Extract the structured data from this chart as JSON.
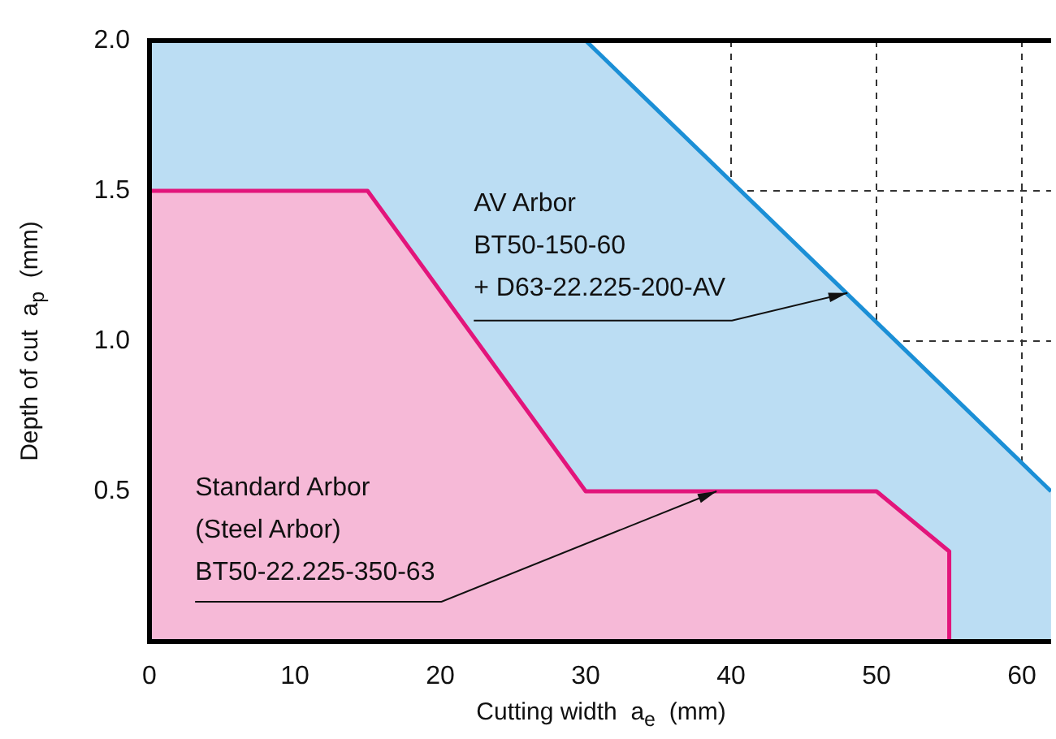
{
  "chart_data": {
    "type": "area",
    "xlabel": "Cutting width  a$_{e}$  (mm)",
    "ylabel": "Depth of cut  a$_{p}$  (mm)",
    "xlim": [
      0,
      62
    ],
    "xticks": [
      0,
      10,
      20,
      30,
      40,
      50,
      60
    ],
    "ylim": [
      0,
      2
    ],
    "yticks": [
      {
        "value": 0,
        "label": null
      },
      {
        "value": 0.5,
        "label": "0.5"
      },
      {
        "value": 1,
        "label": "1.0"
      },
      {
        "value": 1.5,
        "label": "1.5"
      },
      {
        "value": 2,
        "label": "2.0"
      }
    ],
    "series": [
      {
        "color": "#1b8fd6",
        "x": [
          0,
          30,
          62
        ],
        "values": [
          2,
          2,
          0.5
        ]
      },
      {
        "color": "#e2157b",
        "x": [
          0,
          15,
          30,
          50,
          55,
          55
        ],
        "values": [
          1.5,
          1.5,
          0.5,
          0.5,
          0.3,
          0
        ]
      }
    ],
    "annotations": [
      {
        "text": "AV Arbor\nBT50-150-60\n+ D63-22.225-200-AV",
        "x": 48,
        "y": 1.16
      },
      {
        "text": "Standard Arbor\n(Steel Arbor)\nBT50-22.225-350-63",
        "x": 39,
        "y": 0.5
      }
    ],
    "grid": true,
    "legend": false,
    "marker": "none",
    "line_style": "solid"
  }
}
